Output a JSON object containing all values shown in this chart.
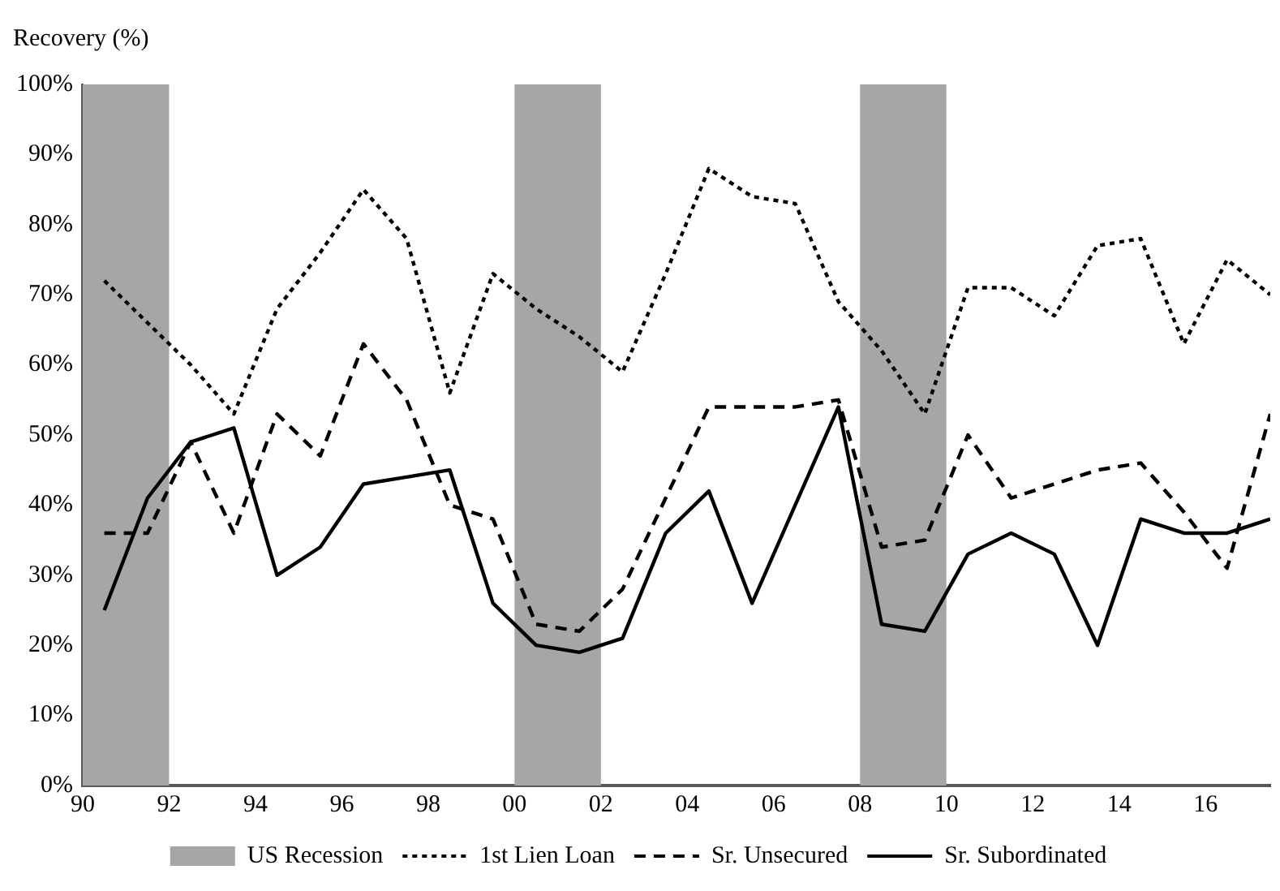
{
  "chart_data": {
    "type": "line",
    "ylabel": "Recovery (%)",
    "x": [
      1990.5,
      1991.5,
      1992.5,
      1993.5,
      1994.5,
      1995.5,
      1996.5,
      1997.5,
      1998.5,
      1999.5,
      2000.5,
      2001.5,
      2002.5,
      2003.5,
      2004.5,
      2005.5,
      2006.5,
      2007.5,
      2008.5,
      2009.5,
      2010.5,
      2011.5,
      2012.5,
      2013.5,
      2014.5,
      2015.5,
      2016.5,
      2017.5
    ],
    "series": [
      {
        "name": "1st Lien Loan",
        "color": "#000000",
        "line_style": "dotted",
        "values": [
          72,
          66,
          60,
          53,
          68,
          76,
          85,
          78,
          56,
          73,
          68,
          64,
          59,
          73,
          88,
          84,
          83,
          69,
          62,
          53,
          71,
          71,
          67,
          77,
          78,
          63,
          75,
          70
        ]
      },
      {
        "name": "Sr. Unsecured",
        "color": "#000000",
        "line_style": "dashed",
        "values": [
          36,
          36,
          49,
          36,
          53,
          47,
          63,
          55,
          40,
          38,
          23,
          22,
          28,
          41,
          54,
          54,
          54,
          55,
          34,
          35,
          50,
          41,
          43,
          45,
          46,
          39,
          31,
          53
        ]
      },
      {
        "name": "Sr. Subordinated",
        "color": "#000000",
        "line_style": "solid",
        "values": [
          25,
          41,
          49,
          51,
          30,
          34,
          43,
          44,
          45,
          26,
          20,
          19,
          21,
          36,
          42,
          26,
          40,
          54,
          23,
          22,
          33,
          36,
          33,
          20,
          38,
          36,
          36,
          38
        ]
      }
    ],
    "bands": [
      {
        "axis": "x",
        "from": 1990,
        "to": 1992,
        "label": "US Recession",
        "color": "#a6a6a6"
      },
      {
        "axis": "x",
        "from": 2000,
        "to": 2002,
        "color": "#a6a6a6"
      },
      {
        "axis": "x",
        "from": 2008,
        "to": 2010,
        "color": "#a6a6a6"
      }
    ],
    "xlim": [
      1990,
      2017.5
    ],
    "xticks": [
      {
        "value": 1990,
        "label": "90"
      },
      {
        "value": 1992,
        "label": "92"
      },
      {
        "value": 1994,
        "label": "94"
      },
      {
        "value": 1996,
        "label": "96"
      },
      {
        "value": 1998,
        "label": "98"
      },
      {
        "value": 2000,
        "label": "00"
      },
      {
        "value": 2002,
        "label": "02"
      },
      {
        "value": 2004,
        "label": "04"
      },
      {
        "value": 2006,
        "label": "06"
      },
      {
        "value": 2008,
        "label": "08"
      },
      {
        "value": 2010,
        "label": "10"
      },
      {
        "value": 2012,
        "label": "12"
      },
      {
        "value": 2014,
        "label": "14"
      },
      {
        "value": 2016,
        "label": "16"
      }
    ],
    "ylim": [
      0,
      100
    ],
    "yticks": [
      {
        "value": 0,
        "label": "0%"
      },
      {
        "value": 10,
        "label": "10%"
      },
      {
        "value": 20,
        "label": "20%"
      },
      {
        "value": 30,
        "label": "30%"
      },
      {
        "value": 40,
        "label": "40%"
      },
      {
        "value": 50,
        "label": "50%"
      },
      {
        "value": 60,
        "label": "60%"
      },
      {
        "value": 70,
        "label": "70%"
      },
      {
        "value": 80,
        "label": "80%"
      },
      {
        "value": 90,
        "label": "90%"
      },
      {
        "value": 100,
        "label": "100%"
      }
    ],
    "grid": false,
    "legend": "bottom",
    "marker": "none"
  }
}
